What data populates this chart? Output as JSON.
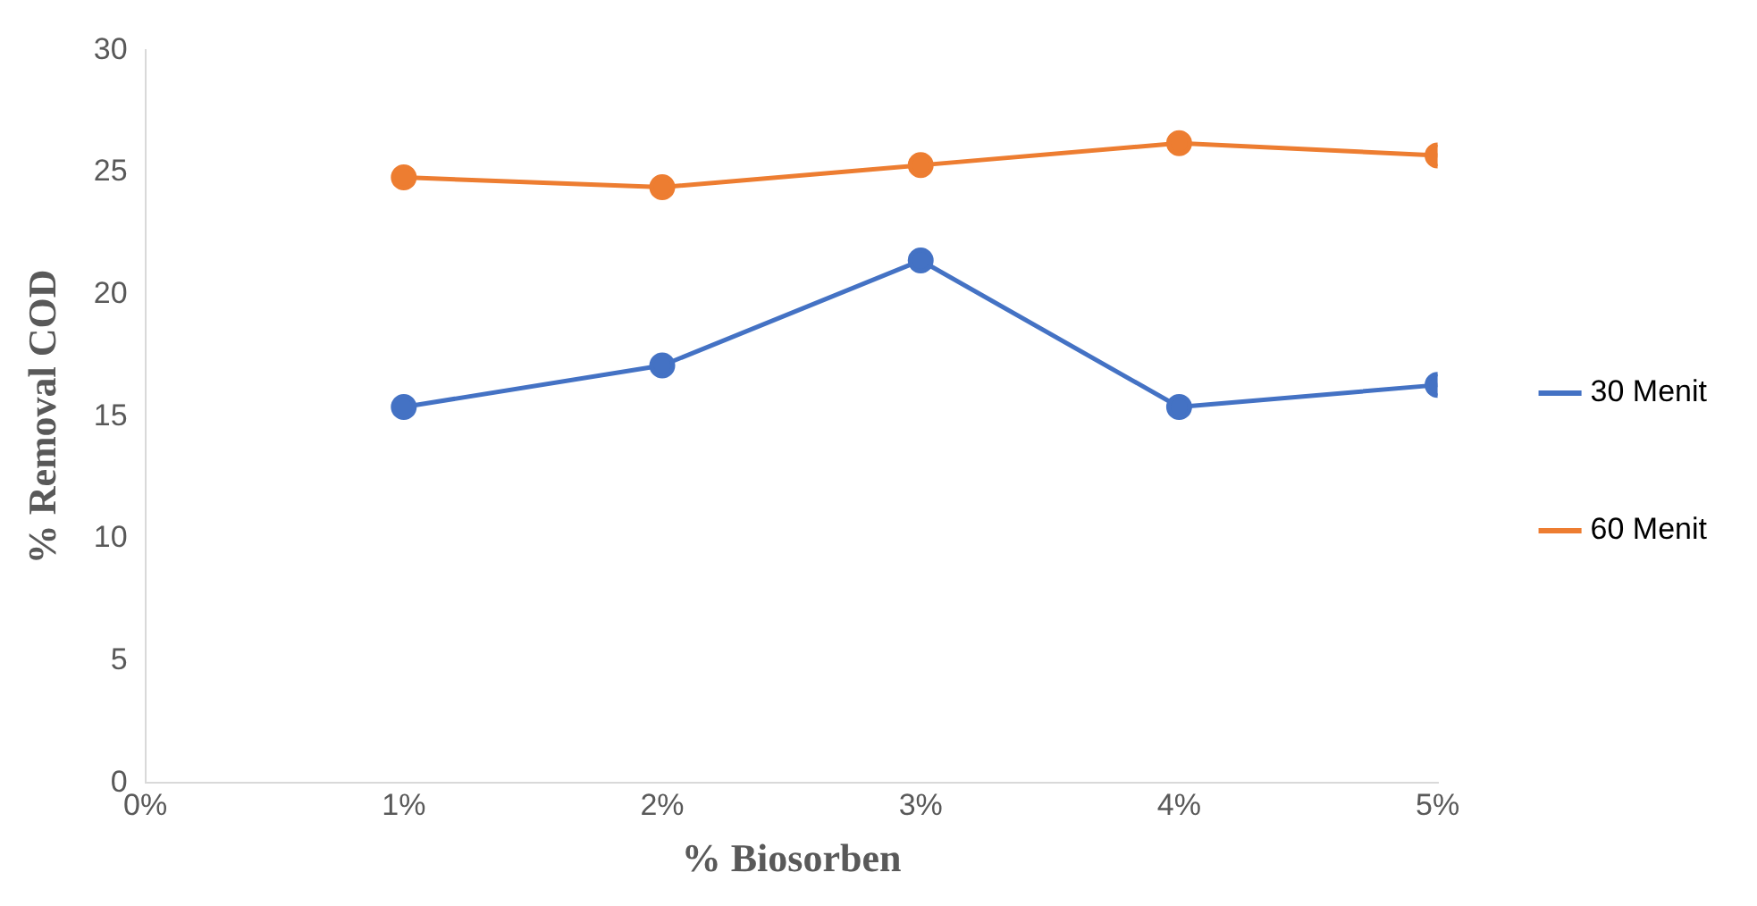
{
  "chart_data": {
    "type": "line",
    "xlabel": "% Biosorben",
    "ylabel": "% Removal COD",
    "x": [
      1,
      2,
      3,
      4,
      5
    ],
    "series": [
      {
        "name": "30 Menit",
        "color": "#4472c4",
        "values": [
          15.4,
          17.1,
          21.4,
          15.4,
          16.3
        ]
      },
      {
        "name": "60 Menit",
        "color": "#ed7d31",
        "values": [
          24.8,
          24.4,
          25.3,
          26.2,
          25.7
        ]
      }
    ],
    "xlim": [
      0,
      5
    ],
    "xticks": [
      {
        "value": 0,
        "label": "0%"
      },
      {
        "value": 1,
        "label": "1%"
      },
      {
        "value": 2,
        "label": "2%"
      },
      {
        "value": 3,
        "label": "3%"
      },
      {
        "value": 4,
        "label": "4%"
      },
      {
        "value": 5,
        "label": "5%"
      }
    ],
    "ylim": [
      0,
      30
    ],
    "yticks": [
      0,
      5,
      10,
      15,
      20,
      25,
      30
    ],
    "grid": false,
    "legend": "right",
    "marker": "circle",
    "line_style": "solid"
  }
}
